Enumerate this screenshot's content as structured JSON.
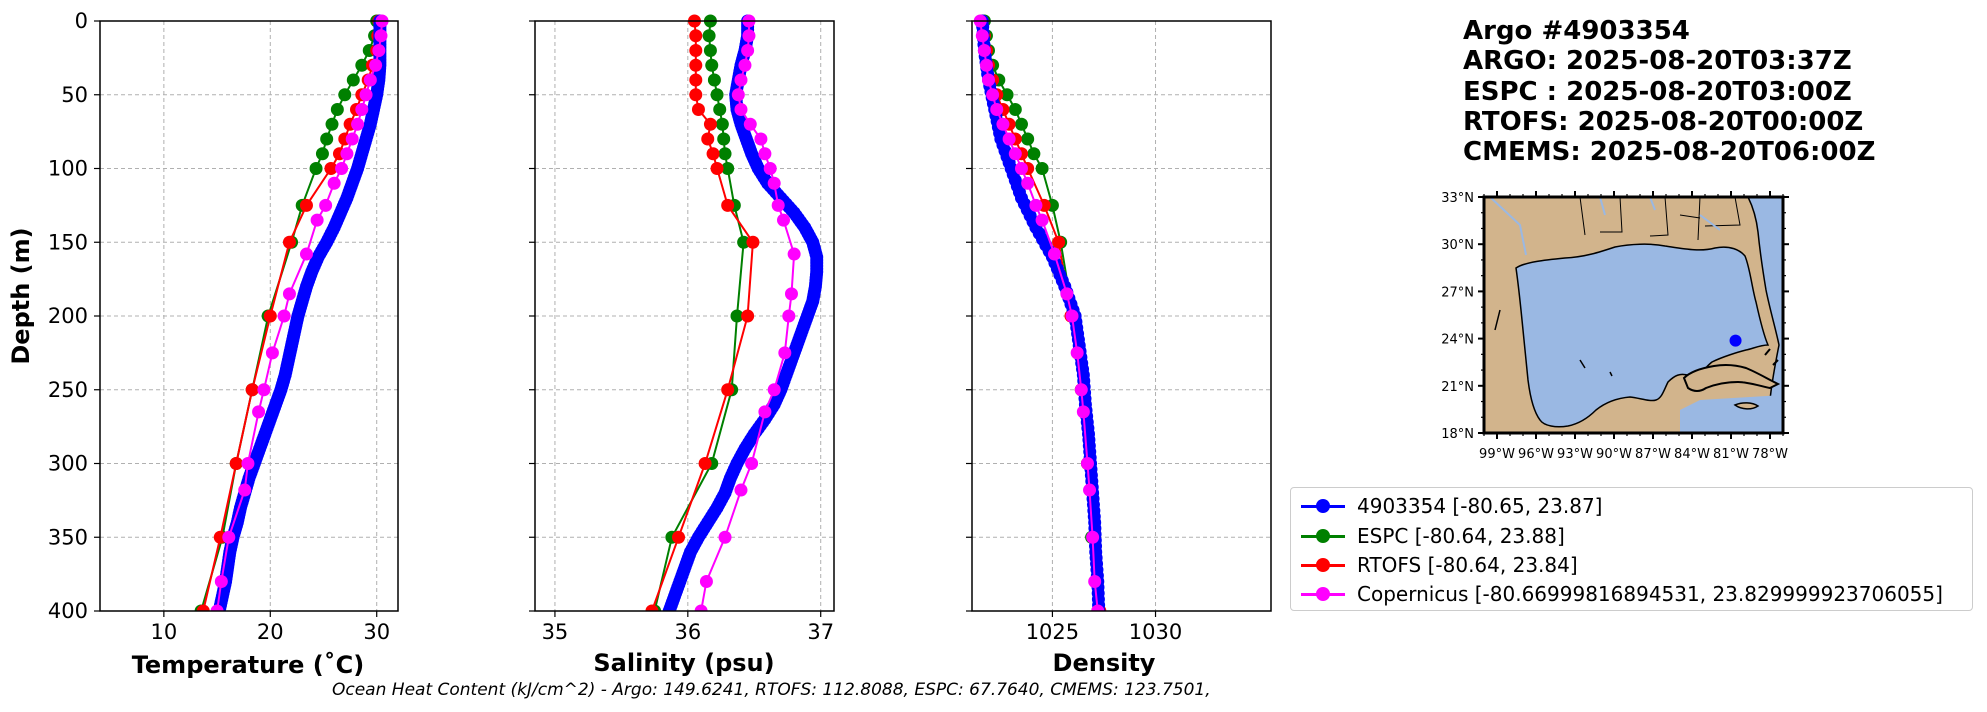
{
  "info": {
    "argo_id": "Argo #4903354",
    "argo_time": "ARGO: 2025-08-20T03:37Z",
    "espc_time": "ESPC : 2025-08-20T03:00Z",
    "rtofs_time": "RTOFS: 2025-08-20T00:00Z",
    "cmems_time": "CMEMS: 2025-08-20T06:00Z"
  },
  "legend": {
    "items": [
      {
        "label": "4903354 [-80.65, 23.87]",
        "color": "#0000ff"
      },
      {
        "label": "ESPC [-80.64, 23.88]",
        "color": "#008000"
      },
      {
        "label": "RTOFS [-80.64, 23.84]",
        "color": "#ff0000"
      },
      {
        "label": "Copernicus [-80.66999816894531, 23.829999923706055]",
        "color": "#ff00ff"
      }
    ]
  },
  "footer": {
    "ohc_text": "Ocean Heat Content (kJ/cm^2) - Argo: 149.6241,  RTOFS: 112.8088,  ESPC: 67.7640,  CMEMS: 123.7501,"
  },
  "colors": {
    "argo": "#0000ff",
    "espc": "#008000",
    "rtofs": "#ff0000",
    "cmems": "#ff00ff",
    "land": "#d2b48c",
    "ocean": "#9ab8e3"
  },
  "chart_data": [
    {
      "type": "line",
      "title": "",
      "xlabel": "Temperature (˚C)",
      "ylabel": "Depth (m)",
      "xlim": [
        4,
        32
      ],
      "ylim": [
        400,
        0
      ],
      "xticks": [
        10,
        20,
        30
      ],
      "yticks": [
        0,
        50,
        100,
        150,
        200,
        250,
        300,
        350,
        400
      ],
      "grid": true,
      "series": [
        {
          "name": "4903354",
          "key": "argo",
          "depth": [
            0,
            10,
            20,
            30,
            40,
            50,
            60,
            70,
            80,
            90,
            100,
            110,
            120,
            130,
            140,
            150,
            160,
            170,
            180,
            190,
            200,
            210,
            220,
            230,
            240,
            250,
            260,
            270,
            280,
            290,
            300,
            310,
            320,
            330,
            340,
            350,
            360,
            370,
            380,
            390,
            400
          ],
          "values": [
            30.3,
            30.3,
            30.3,
            30.3,
            30.2,
            30.0,
            29.7,
            29.4,
            29.0,
            28.6,
            28.2,
            27.7,
            27.2,
            26.6,
            26.0,
            25.3,
            24.5,
            23.9,
            23.4,
            23.0,
            22.6,
            22.3,
            22.0,
            21.7,
            21.4,
            21.0,
            20.5,
            20.0,
            19.5,
            19.0,
            18.5,
            18.0,
            17.6,
            17.2,
            16.9,
            16.5,
            16.2,
            16.0,
            15.8,
            15.5,
            15.2
          ]
        },
        {
          "name": "ESPC",
          "key": "espc",
          "depth": [
            0,
            10,
            20,
            30,
            40,
            50,
            60,
            70,
            80,
            90,
            100,
            125,
            150,
            200,
            250,
            300,
            350,
            400
          ],
          "values": [
            30.0,
            29.8,
            29.3,
            28.6,
            27.8,
            27.0,
            26.3,
            25.8,
            25.3,
            24.9,
            24.3,
            23.0,
            22.0,
            19.8,
            18.3,
            16.8,
            15.5,
            13.5
          ]
        },
        {
          "name": "RTOFS",
          "key": "rtofs",
          "depth": [
            0,
            10,
            20,
            30,
            40,
            50,
            60,
            70,
            80,
            90,
            100,
            125,
            150,
            200,
            250,
            300,
            350,
            400
          ],
          "values": [
            30.2,
            30.1,
            30.0,
            29.6,
            29.2,
            28.6,
            28.1,
            27.5,
            27.0,
            26.5,
            25.7,
            23.4,
            21.8,
            20.0,
            18.3,
            16.8,
            15.3,
            13.7
          ]
        },
        {
          "name": "Copernicus",
          "key": "cmems",
          "depth": [
            0,
            10,
            20,
            30,
            40,
            50,
            60,
            70,
            80,
            90,
            100,
            110,
            125,
            135,
            158,
            185,
            200,
            225,
            250,
            265,
            300,
            318,
            350,
            380,
            400
          ],
          "values": [
            30.5,
            30.4,
            30.2,
            29.9,
            29.4,
            29.0,
            28.6,
            28.2,
            27.7,
            27.2,
            26.7,
            26.0,
            25.2,
            24.4,
            23.4,
            21.8,
            21.3,
            20.2,
            19.4,
            18.9,
            17.9,
            17.6,
            16.1,
            15.4,
            15.0
          ]
        }
      ]
    },
    {
      "type": "line",
      "title": "",
      "xlabel": "Salinity (psu)",
      "ylabel": "",
      "xlim": [
        34.85,
        37.1
      ],
      "ylim": [
        400,
        0
      ],
      "xticks": [
        35,
        36,
        37
      ],
      "yticks": [
        0,
        50,
        100,
        150,
        200,
        250,
        300,
        350,
        400
      ],
      "grid": true,
      "series": [
        {
          "name": "4903354",
          "key": "argo",
          "depth": [
            0,
            10,
            20,
            30,
            40,
            50,
            60,
            70,
            80,
            90,
            100,
            110,
            120,
            130,
            140,
            150,
            160,
            170,
            180,
            190,
            200,
            210,
            220,
            230,
            240,
            250,
            260,
            270,
            280,
            290,
            300,
            310,
            320,
            330,
            340,
            350,
            360,
            370,
            380,
            390,
            400
          ],
          "values": [
            36.45,
            36.45,
            36.43,
            36.4,
            36.38,
            36.36,
            36.37,
            36.4,
            36.44,
            36.48,
            36.53,
            36.6,
            36.7,
            36.8,
            36.88,
            36.94,
            36.97,
            36.97,
            36.96,
            36.94,
            36.9,
            36.86,
            36.82,
            36.78,
            36.74,
            36.7,
            36.65,
            36.58,
            36.5,
            36.43,
            36.37,
            36.32,
            36.28,
            36.22,
            36.15,
            36.08,
            36.02,
            35.98,
            35.94,
            35.9,
            35.86
          ]
        },
        {
          "name": "ESPC",
          "key": "espc",
          "depth": [
            0,
            10,
            20,
            30,
            40,
            50,
            60,
            70,
            80,
            90,
            100,
            125,
            150,
            200,
            250,
            300,
            350,
            400
          ],
          "values": [
            36.17,
            36.16,
            36.17,
            36.18,
            36.2,
            36.22,
            36.24,
            36.26,
            36.27,
            36.28,
            36.3,
            36.35,
            36.42,
            36.37,
            36.33,
            36.18,
            35.88,
            35.75
          ]
        },
        {
          "name": "RTOFS",
          "key": "rtofs",
          "depth": [
            0,
            10,
            20,
            30,
            40,
            50,
            60,
            70,
            80,
            90,
            100,
            125,
            150,
            200,
            250,
            300,
            350,
            400
          ],
          "values": [
            36.05,
            36.06,
            36.06,
            36.06,
            36.06,
            36.06,
            36.08,
            36.17,
            36.15,
            36.19,
            36.22,
            36.3,
            36.49,
            36.45,
            36.3,
            36.13,
            35.93,
            35.73
          ]
        },
        {
          "name": "Copernicus",
          "key": "cmems",
          "depth": [
            0,
            10,
            20,
            30,
            40,
            50,
            60,
            70,
            80,
            90,
            100,
            110,
            125,
            135,
            158,
            185,
            200,
            225,
            250,
            265,
            300,
            318,
            350,
            380,
            400
          ],
          "values": [
            36.46,
            36.46,
            36.45,
            36.43,
            36.4,
            36.38,
            36.4,
            36.47,
            36.55,
            36.58,
            36.62,
            36.65,
            36.68,
            36.72,
            36.8,
            36.78,
            36.76,
            36.73,
            36.65,
            36.58,
            36.48,
            36.4,
            36.28,
            36.14,
            36.1
          ]
        }
      ]
    },
    {
      "type": "line",
      "title": "",
      "xlabel": "Density",
      "ylabel": "",
      "xlim": [
        1021.1,
        1035.6
      ],
      "ylim": [
        400,
        0
      ],
      "xticks": [
        1025,
        1030
      ],
      "yticks": [
        0,
        50,
        100,
        150,
        200,
        250,
        300,
        350,
        400
      ],
      "grid": true,
      "series": [
        {
          "name": "4903354",
          "key": "argo",
          "depth": [
            0,
            20,
            40,
            60,
            80,
            100,
            120,
            140,
            160,
            180,
            200,
            220,
            240,
            260,
            280,
            300,
            320,
            340,
            360,
            380,
            400
          ],
          "values": [
            1021.6,
            1021.7,
            1021.9,
            1022.2,
            1022.5,
            1023.0,
            1023.5,
            1024.2,
            1025.0,
            1025.6,
            1026.1,
            1026.3,
            1026.5,
            1026.6,
            1026.75,
            1026.85,
            1026.95,
            1027.05,
            1027.1,
            1027.2,
            1027.25
          ]
        },
        {
          "name": "ESPC",
          "key": "espc",
          "depth": [
            0,
            10,
            20,
            30,
            40,
            50,
            60,
            70,
            80,
            90,
            100,
            125,
            150,
            200,
            250,
            300,
            350,
            400
          ],
          "values": [
            1021.7,
            1021.8,
            1021.9,
            1022.1,
            1022.4,
            1022.8,
            1023.2,
            1023.5,
            1023.8,
            1024.1,
            1024.5,
            1025.0,
            1025.4,
            1026.0,
            1026.4,
            1026.7,
            1026.9,
            1027.2
          ]
        },
        {
          "name": "RTOFS",
          "key": "rtofs",
          "depth": [
            0,
            10,
            20,
            30,
            40,
            50,
            60,
            70,
            80,
            90,
            100,
            125,
            150,
            200,
            250,
            300,
            350,
            400
          ],
          "values": [
            1021.6,
            1021.7,
            1021.8,
            1021.9,
            1022.1,
            1022.3,
            1022.6,
            1022.9,
            1023.2,
            1023.5,
            1023.8,
            1024.6,
            1025.3,
            1025.9,
            1026.4,
            1026.7,
            1027.0,
            1027.3
          ]
        },
        {
          "name": "Copernicus",
          "key": "cmems",
          "depth": [
            0,
            10,
            20,
            30,
            40,
            50,
            60,
            70,
            80,
            90,
            100,
            110,
            125,
            135,
            158,
            185,
            200,
            225,
            250,
            265,
            300,
            318,
            350,
            380,
            400
          ],
          "values": [
            1021.5,
            1021.6,
            1021.7,
            1021.8,
            1021.9,
            1022.1,
            1022.3,
            1022.6,
            1022.9,
            1023.2,
            1023.5,
            1023.8,
            1024.2,
            1024.5,
            1025.1,
            1025.7,
            1025.95,
            1026.2,
            1026.4,
            1026.5,
            1026.7,
            1026.8,
            1026.95,
            1027.05,
            1027.2
          ]
        }
      ]
    },
    {
      "type": "map",
      "title": "",
      "lon_range": [
        -100,
        -77
      ],
      "lat_range": [
        18,
        33
      ],
      "xticklabels": [
        "99°W",
        "96°W",
        "93°W",
        "90°W",
        "87°W",
        "84°W",
        "81°W",
        "78°W"
      ],
      "xtick_lons": [
        -99,
        -96,
        -93,
        -90,
        -87,
        -84,
        -81,
        -78
      ],
      "yticklabels": [
        "33°N",
        "30°N",
        "27°N",
        "24°N",
        "21°N",
        "18°N"
      ],
      "ytick_lats": [
        33,
        30,
        27,
        24,
        21,
        18
      ],
      "marker": {
        "lon": -80.65,
        "lat": 23.87
      }
    }
  ]
}
